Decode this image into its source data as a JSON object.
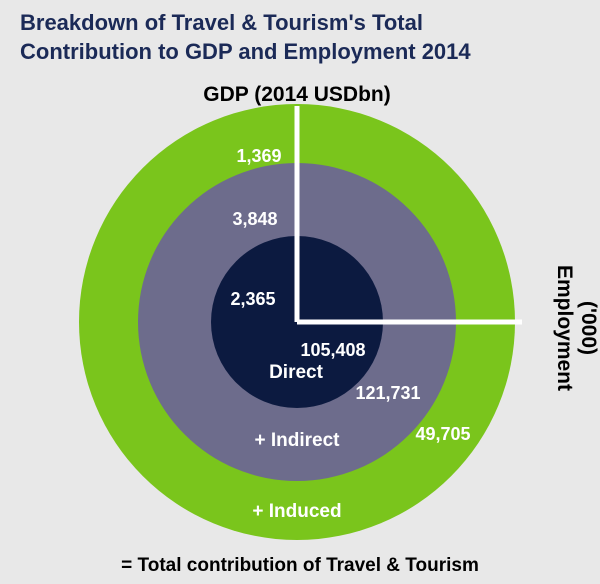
{
  "chart_data": {
    "type": "pie",
    "title_line1": "Breakdown of Travel & Tourism's Total",
    "title_line2": "Contribution to GDP and Employment 2014",
    "gdp_label": "GDP (2014 USDbn)",
    "employment_label_line1": "Employment",
    "employment_label_line2": "('000)",
    "rings": [
      {
        "name": "Direct",
        "gdp": 2365,
        "gdp_text": "2,365",
        "employment": 105408,
        "employment_text": "105,408",
        "label": "Direct"
      },
      {
        "name": "Indirect",
        "gdp": 3848,
        "gdp_text": "3,848",
        "employment": 121731,
        "employment_text": "121,731",
        "label": "+ Indirect"
      },
      {
        "name": "Induced",
        "gdp": 1369,
        "gdp_text": "1,369",
        "employment": 49705,
        "employment_text": "49,705",
        "label": "+ Induced"
      }
    ],
    "footer": "= Total contribution of Travel & Tourism",
    "colors": {
      "direct": "#0c1a40",
      "indirect": "#6d6c8c",
      "induced": "#7ac51c",
      "title": "#1b2a57",
      "divider": "#ffffff",
      "background": "#e8e8e8"
    }
  }
}
